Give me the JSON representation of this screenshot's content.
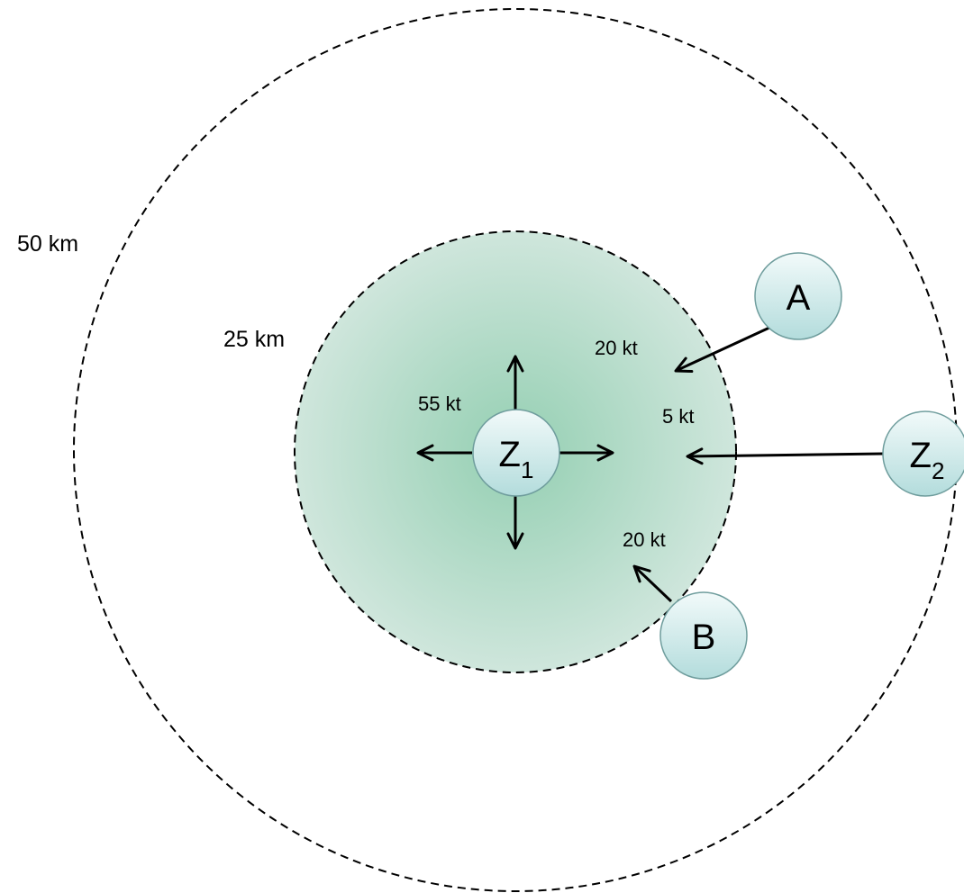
{
  "rings": {
    "outer_label": "50 km",
    "inner_label": "25 km"
  },
  "nodes": {
    "z1": {
      "label": "Z",
      "subscript": "1"
    },
    "z2": {
      "label": "Z",
      "subscript": "2"
    },
    "a": {
      "label": "A"
    },
    "b": {
      "label": "B"
    }
  },
  "speeds": {
    "z1": "55 kt",
    "a": "20 kt",
    "z2": "5 kt",
    "b": "20 kt"
  },
  "colors": {
    "zone_center": "#94cfb2",
    "zone_edge": "#cfe6dc",
    "node_top": "#f2fafa",
    "node_bottom": "#b3dcdc",
    "node_border": "#6f9d9d",
    "ring_stroke": "#000000"
  }
}
